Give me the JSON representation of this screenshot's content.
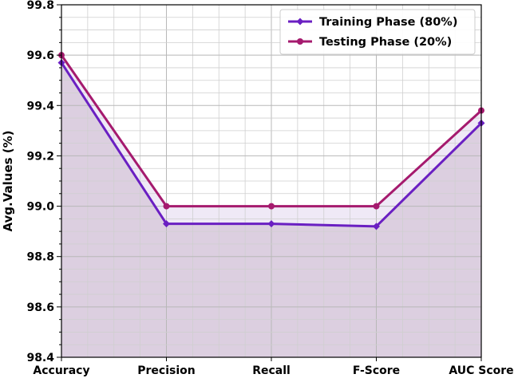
{
  "chart_data": {
    "type": "line",
    "categories": [
      "Accuracy",
      "Precision",
      "Recall",
      "F-Score",
      "AUC Score"
    ],
    "series": [
      {
        "name": "Training Phase (80%)",
        "values": [
          99.57,
          98.93,
          98.93,
          98.92,
          99.33
        ],
        "color": "#6a1fc2",
        "marker": "diamond"
      },
      {
        "name": "Testing Phase (20%)",
        "values": [
          99.6,
          99.0,
          99.0,
          99.0,
          99.38
        ],
        "color": "#a51a6e",
        "marker": "circle"
      }
    ],
    "ylabel": "Avg.Values (%)",
    "xlabel": "",
    "ylim": [
      98.4,
      99.8
    ],
    "yticks": [
      "98.4",
      "98.6",
      "98.8",
      "99.0",
      "99.2",
      "99.4",
      "99.6",
      "99.8"
    ],
    "grid": true,
    "legend_position": "top-right",
    "fill_color": "#dccfe0",
    "band_fill_color": "#efe9f6"
  }
}
